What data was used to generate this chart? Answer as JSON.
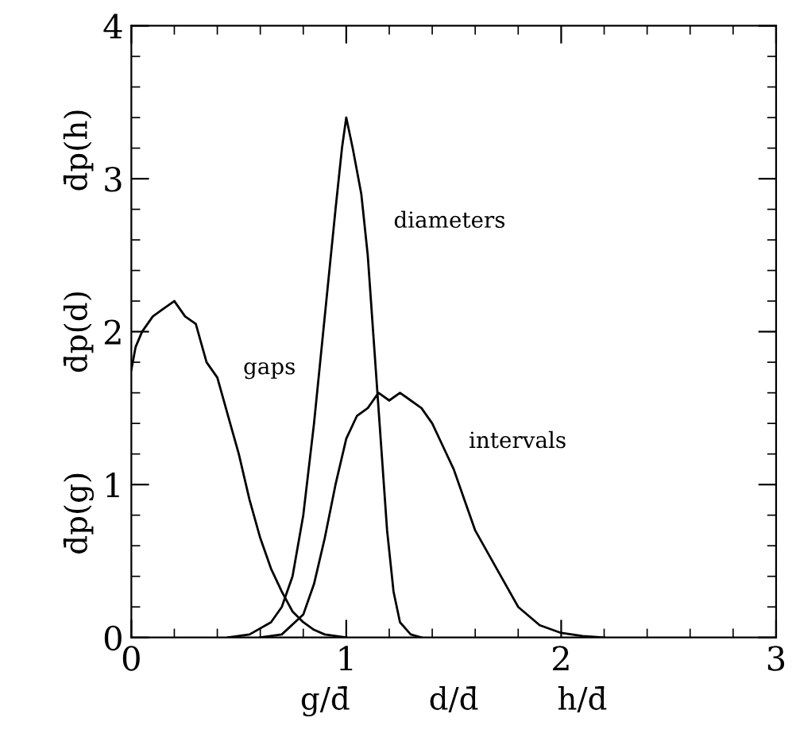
{
  "chart_data": {
    "type": "line",
    "xlabel": "g/d̄        d/d̄        h/d̄",
    "ylabel": "d̄p(g)          d̄p(d)          d̄p(h)",
    "xlim": [
      0,
      3
    ],
    "ylim": [
      0,
      4
    ],
    "xticks": [
      0,
      1,
      2,
      3
    ],
    "yticks": [
      0,
      1,
      2,
      3,
      4
    ],
    "grid": false,
    "marker": "none",
    "line_style": "solid",
    "series": [
      {
        "name": "gaps",
        "color": "#000000",
        "x": [
          0,
          0.02,
          0.05,
          0.1,
          0.15,
          0.2,
          0.25,
          0.3,
          0.35,
          0.4,
          0.45,
          0.5,
          0.55,
          0.6,
          0.65,
          0.7,
          0.75,
          0.8,
          0.85,
          0.9,
          1.0
        ],
        "values": [
          1.75,
          1.9,
          2.0,
          2.1,
          2.15,
          2.2,
          2.1,
          2.05,
          1.8,
          1.7,
          1.45,
          1.2,
          0.9,
          0.65,
          0.45,
          0.3,
          0.17,
          0.1,
          0.05,
          0.02,
          0
        ]
      },
      {
        "name": "diameters",
        "color": "#000000",
        "x": [
          0.45,
          0.55,
          0.65,
          0.7,
          0.75,
          0.8,
          0.85,
          0.9,
          0.95,
          0.98,
          1.0,
          1.03,
          1.07,
          1.1,
          1.13,
          1.16,
          1.19,
          1.22,
          1.25,
          1.3,
          1.35
        ],
        "values": [
          0,
          0.02,
          0.1,
          0.2,
          0.4,
          0.8,
          1.4,
          2.1,
          2.8,
          3.2,
          3.4,
          3.2,
          2.9,
          2.5,
          1.9,
          1.3,
          0.7,
          0.3,
          0.1,
          0.02,
          0
        ]
      },
      {
        "name": "intervals",
        "color": "#000000",
        "x": [
          0.6,
          0.7,
          0.8,
          0.85,
          0.9,
          0.95,
          1.0,
          1.05,
          1.1,
          1.15,
          1.2,
          1.25,
          1.3,
          1.35,
          1.4,
          1.45,
          1.5,
          1.55,
          1.6,
          1.7,
          1.8,
          1.9,
          2.0,
          2.1,
          2.2
        ],
        "values": [
          0,
          0.02,
          0.15,
          0.35,
          0.65,
          1.0,
          1.3,
          1.45,
          1.5,
          1.6,
          1.55,
          1.6,
          1.55,
          1.5,
          1.4,
          1.25,
          1.1,
          0.9,
          0.7,
          0.45,
          0.2,
          0.08,
          0.03,
          0.01,
          0
        ]
      }
    ]
  }
}
